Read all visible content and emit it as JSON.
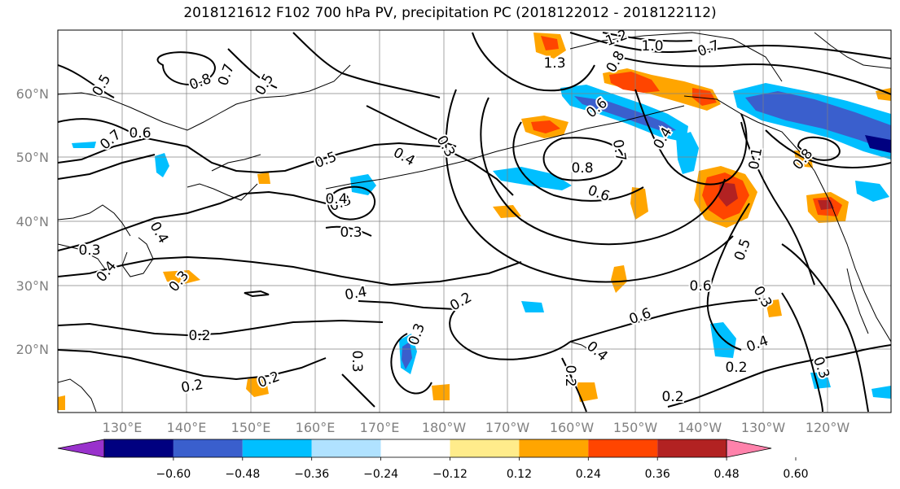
{
  "title": "2018121612 F102 700 hPa PV, precipitation PC (2018122012 - 2018122112)",
  "lat_labels": [
    "60°N",
    "50°N",
    "40°N",
    "30°N",
    "20°N"
  ],
  "lon_labels": [
    "130°E",
    "140°E",
    "150°E",
    "160°E",
    "170°E",
    "180°W",
    "170°W",
    "160°W",
    "150°W",
    "140°W",
    "130°W",
    "120°W"
  ],
  "colorbar": {
    "colors": [
      "#9932cc",
      "#000080",
      "#3a5fcd",
      "#00bfff",
      "#b0e2ff",
      "#ffffff",
      "#ffec8b",
      "#ffa500",
      "#ff4500",
      "#b22222",
      "#ff82ab"
    ],
    "tick_labels": [
      "−0.60",
      "−0.48",
      "−0.36",
      "−0.24",
      "−0.12",
      "0.12",
      "0.24",
      "0.36",
      "0.48",
      "0.60"
    ]
  },
  "contour_labels": [
    "0.5",
    "0.8",
    "0.7",
    "0.5",
    "0.7",
    "0.6",
    "0.5",
    "0.4",
    "0.3",
    "0.3",
    "0.3",
    "0.4",
    "0.3",
    "0.4",
    "0.4",
    "0.3",
    "0.2",
    "0.2",
    "0.2",
    "0.4",
    "0.3",
    "0.2",
    "0.3",
    "0.2",
    "1.2",
    "1.0",
    "1.3",
    "0.8",
    "0.6",
    "0.4",
    "0.7",
    "0.8",
    "0.6",
    "0.6",
    "0.5",
    "0.6",
    "0.4",
    "0.3",
    "0.4",
    "0.2",
    "0.2",
    "0.7",
    "0.1",
    "0.8",
    "0.3"
  ]
}
